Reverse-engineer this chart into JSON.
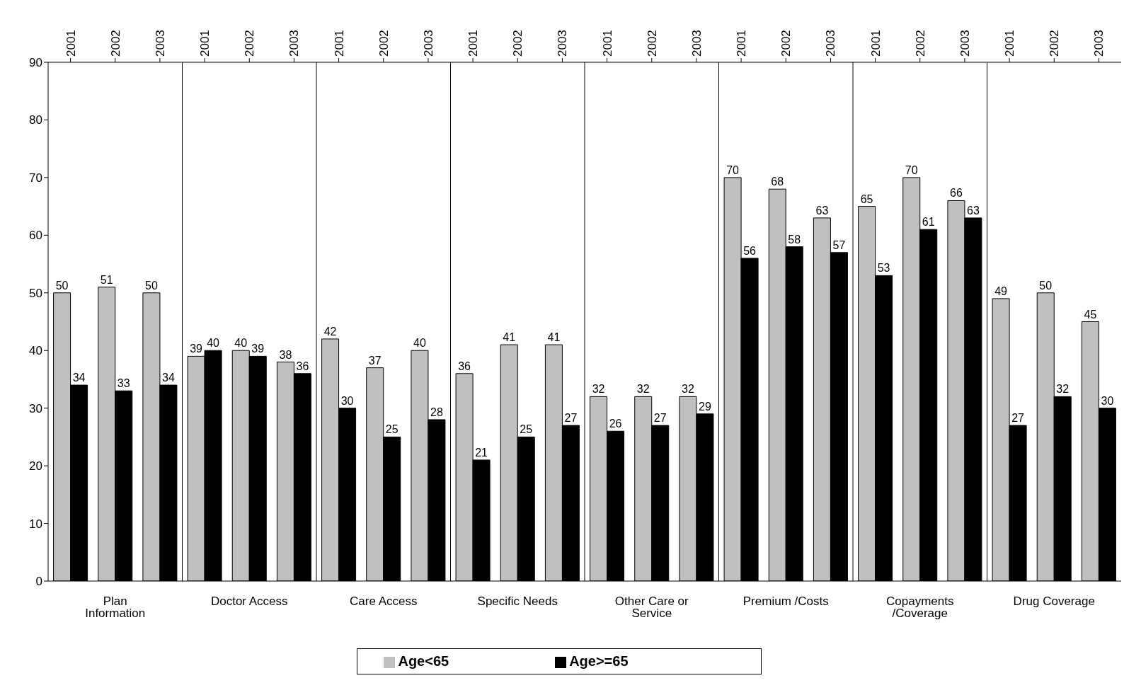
{
  "chart_data": {
    "type": "bar",
    "categories": [
      "2001",
      "2002",
      "2003",
      "2001",
      "2002",
      "2003",
      "2001",
      "2002",
      "2003",
      "2001",
      "2002",
      "2003",
      "2001",
      "2002",
      "2003",
      "2001",
      "2002",
      "2003",
      "2001",
      "2002",
      "2003",
      "2001",
      "2002",
      "2003"
    ],
    "annotations": [
      "Plan Information",
      "Doctor Access",
      "Care Access",
      "Specific Needs",
      "Other Care or Service",
      "Premium /Costs",
      "Copayments /Coverage",
      "Drug Coverage"
    ],
    "series": [
      {
        "name": "Age<65",
        "color": "#c0c0c0",
        "values": [
          50,
          51,
          50,
          39,
          40,
          38,
          42,
          37,
          40,
          36,
          41,
          41,
          32,
          32,
          32,
          70,
          68,
          63,
          65,
          70,
          66,
          49,
          50,
          45
        ]
      },
      {
        "name": "Age>=65",
        "color": "#000000",
        "values": [
          34,
          33,
          34,
          40,
          39,
          36,
          30,
          25,
          28,
          21,
          25,
          27,
          26,
          27,
          29,
          56,
          58,
          57,
          53,
          61,
          63,
          27,
          32,
          30
        ]
      }
    ],
    "ylim": [
      0,
      90
    ],
    "yticks": [
      0,
      10,
      20,
      30,
      40,
      50,
      60,
      70,
      80,
      90
    ],
    "data_labels": true,
    "legend": "bottom",
    "grid": false
  }
}
